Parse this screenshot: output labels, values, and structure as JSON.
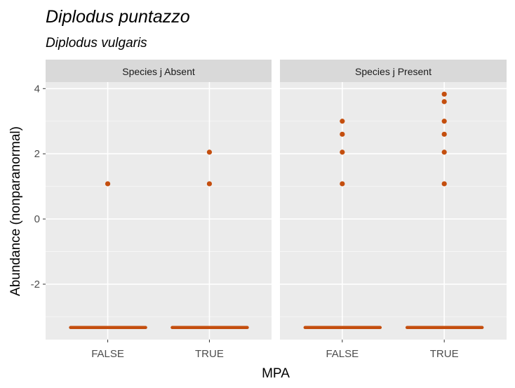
{
  "chart_data": {
    "type": "scatter",
    "title": "Diplodus puntazzo",
    "subtitle": "Diplodus vulgaris",
    "xlabel": "MPA",
    "ylabel": "Abundance (nonparanormal)",
    "categories": [
      "FALSE",
      "TRUE"
    ],
    "ylim": [
      -3.7,
      4.2
    ],
    "yticks": [
      4,
      2,
      0,
      -2
    ],
    "grid": true,
    "point_color": "#c44e0e",
    "panel_background": "#ebebeb",
    "strip_background": "#d9d9d9",
    "panels": [
      {
        "strip": "Species j Absent",
        "series": [
          {
            "x": "FALSE",
            "points": [
              1.08
            ],
            "baseline": -3.33
          },
          {
            "x": "TRUE",
            "points": [
              1.08,
              2.05
            ],
            "baseline": -3.33
          }
        ]
      },
      {
        "strip": "Species j Present",
        "series": [
          {
            "x": "FALSE",
            "points": [
              1.08,
              2.05,
              2.6,
              3.0
            ],
            "baseline": -3.33
          },
          {
            "x": "TRUE",
            "points": [
              1.08,
              2.05,
              2.6,
              3.0,
              3.6,
              3.83
            ],
            "baseline": -3.33
          }
        ]
      }
    ]
  }
}
